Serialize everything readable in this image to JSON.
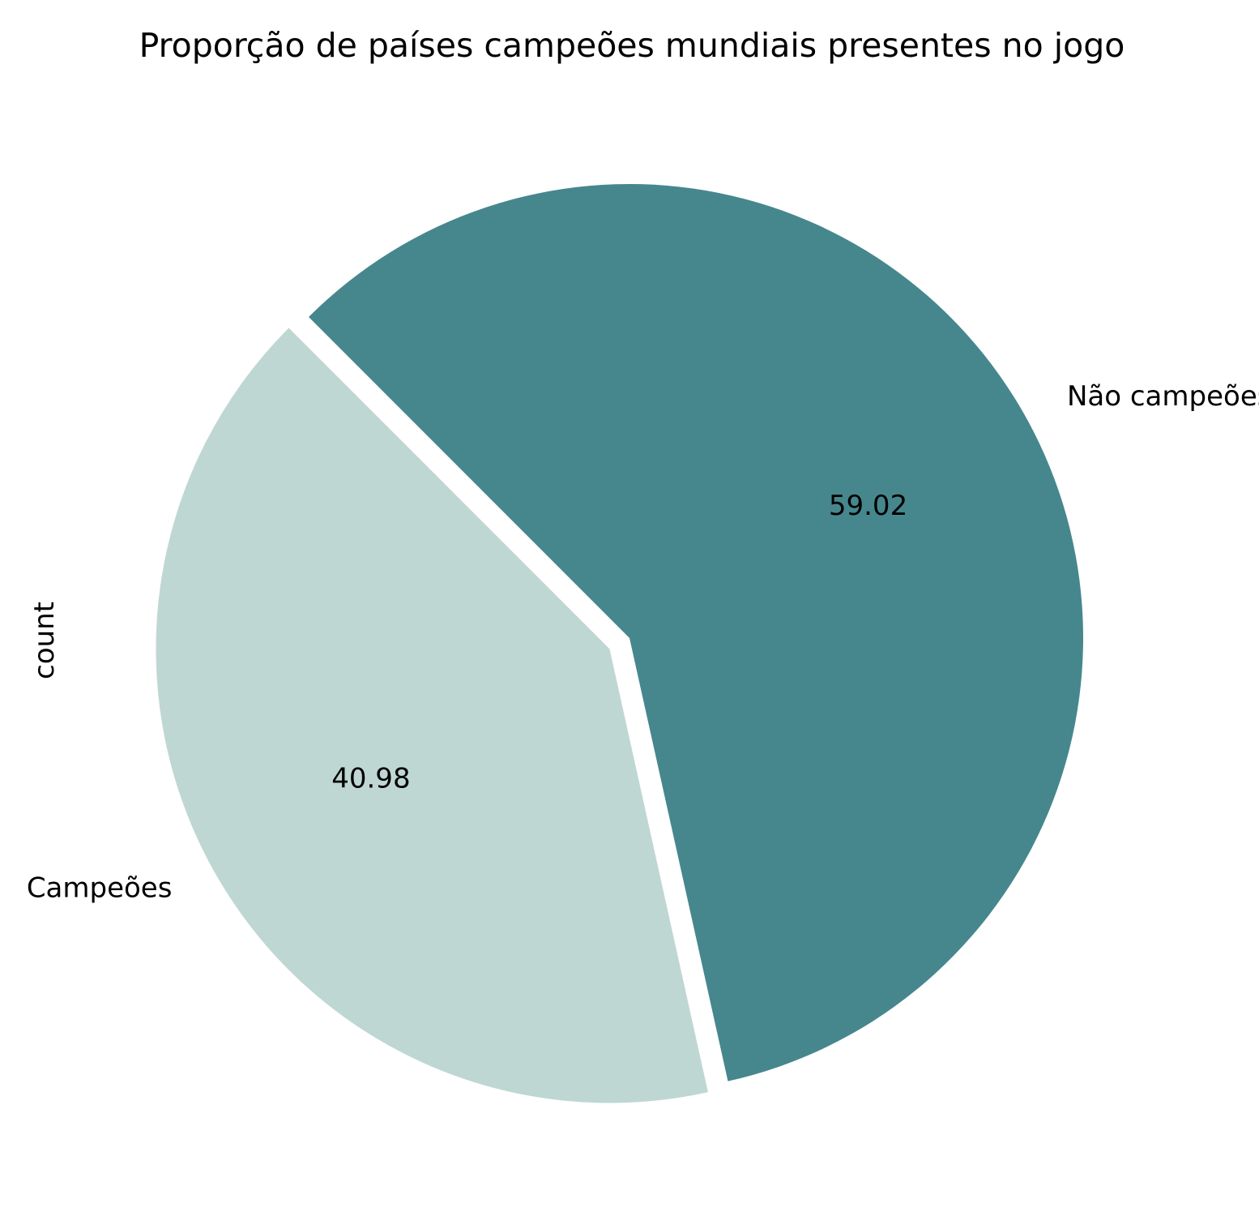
{
  "chart_data": {
    "type": "pie",
    "title": "Proporção de países campeões mundiais presentes no jogo",
    "ylabel": "count",
    "slices": [
      {
        "label": "Campeões",
        "value": 40.98,
        "value_label": "40.98",
        "color": "#bfd7d3",
        "exploded": true
      },
      {
        "label": "Não campeões",
        "value": 59.02,
        "value_label": "59.02",
        "color": "#46878e",
        "exploded": false
      }
    ],
    "start_angle_deg": 135,
    "direction": "counterclockwise",
    "legend": "none"
  }
}
